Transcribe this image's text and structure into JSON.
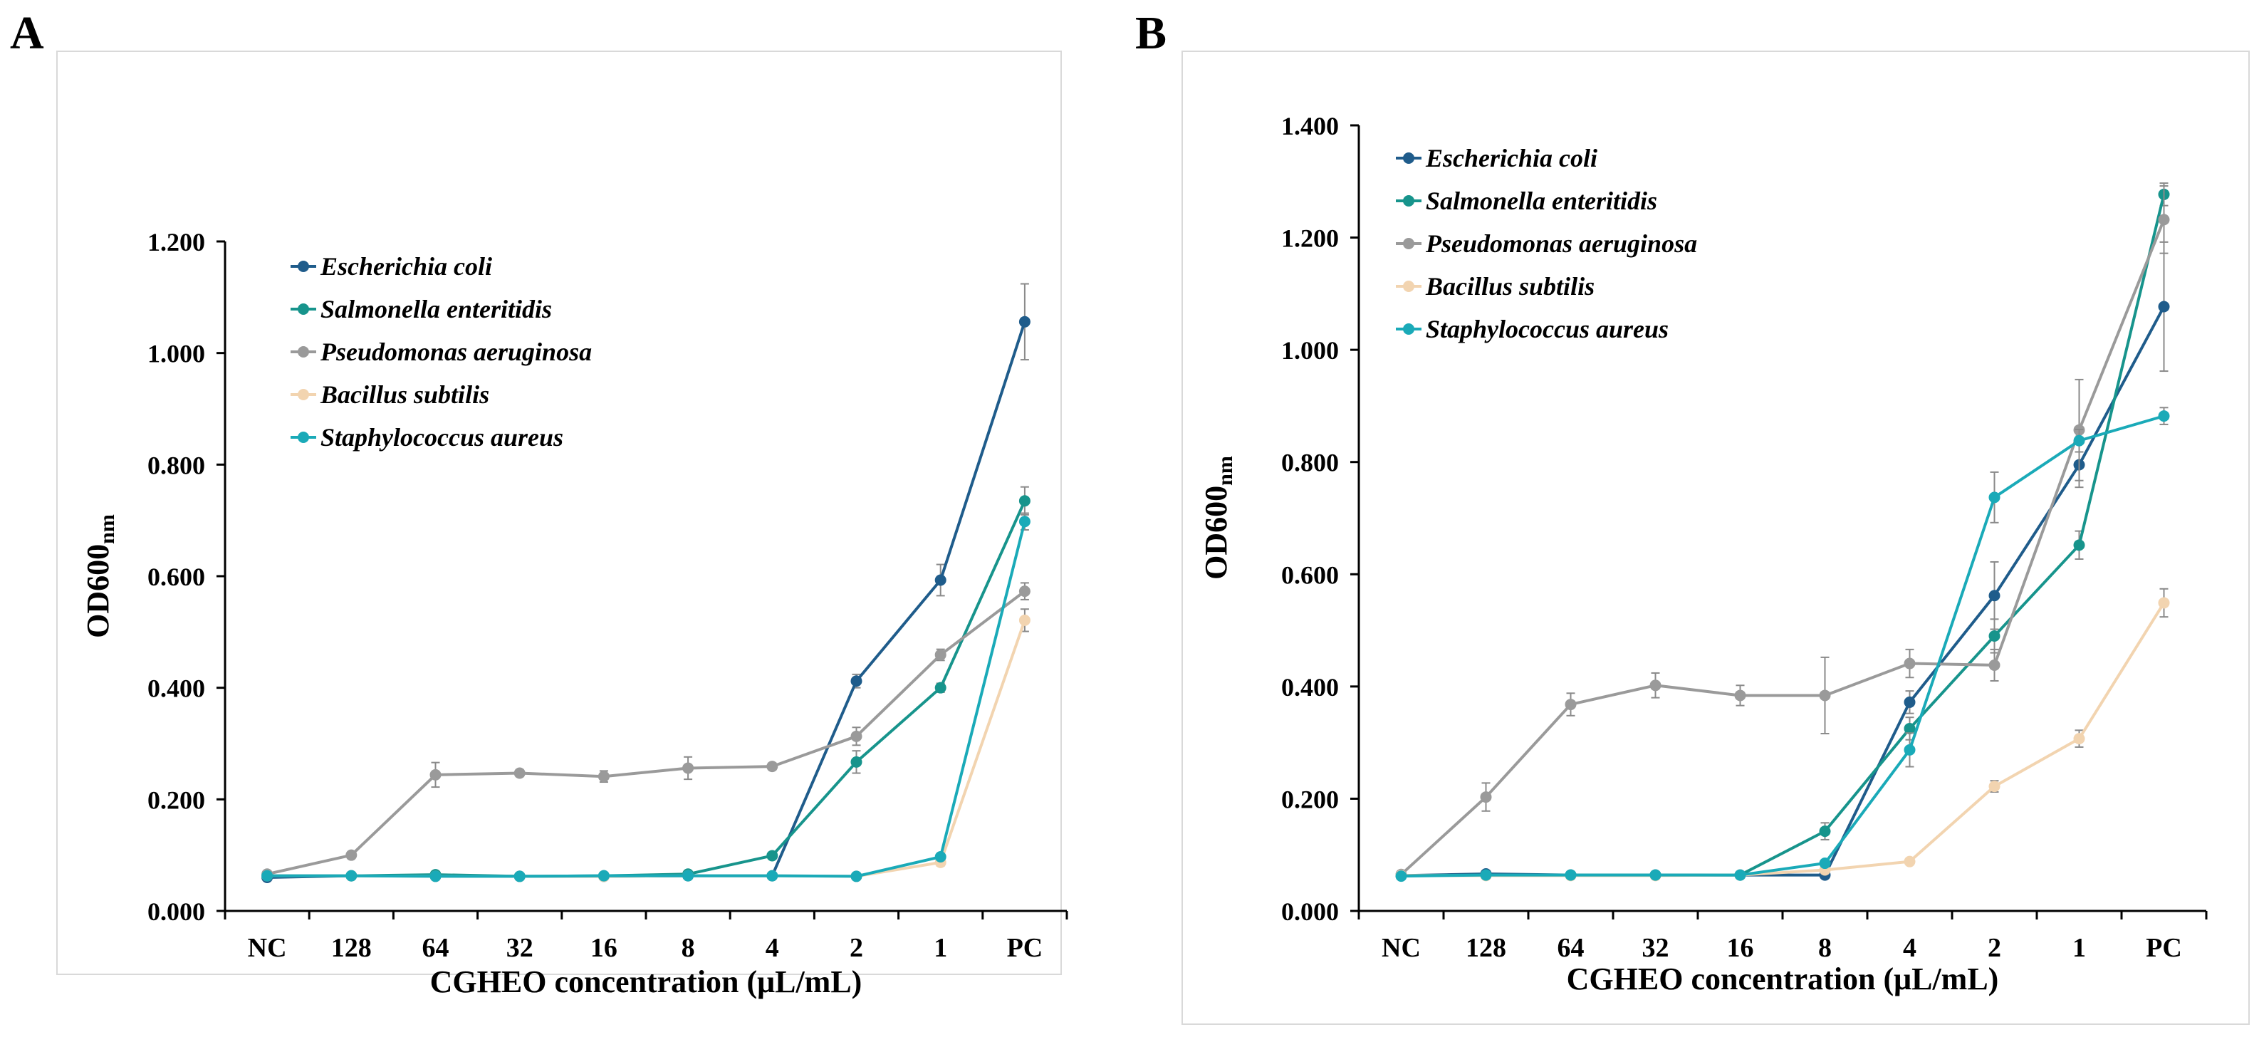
{
  "chart_data": [
    {
      "type": "line",
      "panel": "A",
      "title": "",
      "xlabel": "CGHEO concentration  (μL/mL)",
      "ylabel": "OD600",
      "ylabel_sub": "nm",
      "categories": [
        "NC",
        "128",
        "64",
        "32",
        "16",
        "8",
        "4",
        "2",
        "1",
        "PC"
      ],
      "ylim": [
        0,
        1.2
      ],
      "yticks": [
        "0.000",
        "0.200",
        "0.400",
        "0.600",
        "0.800",
        "1.000",
        "1.200"
      ],
      "grid": false,
      "legend_position": "top-left",
      "series": [
        {
          "name": "Escherichia coli",
          "color": "#1F5C8B",
          "values": [
            0.06,
            0.063,
            0.063,
            0.062,
            0.062,
            0.063,
            0.063,
            0.412,
            0.593,
            1.056
          ],
          "errors": [
            0.004,
            0.003,
            0.003,
            0.003,
            0.003,
            0.003,
            0.003,
            0.012,
            0.028,
            0.068
          ]
        },
        {
          "name": "Salmonella enteritidis",
          "color": "#17948C",
          "values": [
            0.063,
            0.063,
            0.065,
            0.062,
            0.063,
            0.066,
            0.099,
            0.267,
            0.4,
            0.735
          ],
          "errors": [
            0.003,
            0.003,
            0.003,
            0.003,
            0.003,
            0.003,
            0.004,
            0.02,
            0.008,
            0.025
          ]
        },
        {
          "name": "Pseudomonas aeruginosa",
          "color": "#9A9A9A",
          "values": [
            0.066,
            0.1,
            0.244,
            0.247,
            0.241,
            0.256,
            0.259,
            0.313,
            0.459,
            0.573
          ],
          "errors": [
            0.003,
            0.004,
            0.022,
            0.006,
            0.01,
            0.02,
            0.006,
            0.016,
            0.01,
            0.015
          ]
        },
        {
          "name": "Bacillus subtilis",
          "color": "#F2D4B0",
          "values": [
            0.063,
            0.063,
            0.062,
            0.062,
            0.062,
            0.063,
            0.063,
            0.062,
            0.087,
            0.521
          ],
          "errors": [
            0.003,
            0.003,
            0.003,
            0.003,
            0.003,
            0.003,
            0.003,
            0.003,
            0.006,
            0.02
          ]
        },
        {
          "name": "Staphylococcus aureus",
          "color": "#1AAAB8",
          "values": [
            0.063,
            0.063,
            0.062,
            0.062,
            0.063,
            0.063,
            0.063,
            0.062,
            0.097,
            0.698
          ],
          "errors": [
            0.003,
            0.003,
            0.003,
            0.003,
            0.003,
            0.003,
            0.003,
            0.003,
            0.004,
            0.015
          ]
        }
      ]
    },
    {
      "type": "line",
      "panel": "B",
      "title": "",
      "xlabel": "CGHEO concentration (μL/mL)",
      "ylabel": "OD600",
      "ylabel_sub": "nm",
      "categories": [
        "NC",
        "128",
        "64",
        "32",
        "16",
        "8",
        "4",
        "2",
        "1",
        "PC"
      ],
      "ylim": [
        0,
        1.4
      ],
      "yticks": [
        "0.000",
        "0.200",
        "0.400",
        "0.600",
        "0.800",
        "1.000",
        "1.200",
        "1.400"
      ],
      "grid": false,
      "legend_position": "top-left",
      "series": [
        {
          "name": "Escherichia coli",
          "color": "#1F5C8B",
          "values": [
            0.063,
            0.066,
            0.064,
            0.064,
            0.064,
            0.064,
            0.372,
            0.562,
            0.795,
            1.077
          ],
          "errors": [
            0.003,
            0.003,
            0.003,
            0.003,
            0.003,
            0.003,
            0.02,
            0.06,
            0.04,
            0.115
          ]
        },
        {
          "name": "Salmonella enteritidis",
          "color": "#17948C",
          "values": [
            0.063,
            0.064,
            0.064,
            0.064,
            0.064,
            0.142,
            0.325,
            0.49,
            0.652,
            1.277
          ],
          "errors": [
            0.003,
            0.003,
            0.003,
            0.003,
            0.003,
            0.015,
            0.02,
            0.03,
            0.025,
            0.02
          ]
        },
        {
          "name": "Pseudomonas aeruginosa",
          "color": "#9A9A9A",
          "values": [
            0.065,
            0.203,
            0.368,
            0.402,
            0.384,
            0.384,
            0.441,
            0.438,
            0.857,
            1.232
          ],
          "errors": [
            0.003,
            0.025,
            0.02,
            0.022,
            0.018,
            0.068,
            0.025,
            0.028,
            0.09,
            0.06
          ]
        },
        {
          "name": "Bacillus subtilis",
          "color": "#F2D4B0",
          "values": [
            0.063,
            0.063,
            0.063,
            0.063,
            0.064,
            0.073,
            0.088,
            0.222,
            0.307,
            0.549
          ],
          "errors": [
            0.003,
            0.003,
            0.003,
            0.003,
            0.003,
            0.004,
            0.005,
            0.01,
            0.015,
            0.025
          ]
        },
        {
          "name": "Staphylococcus aureus",
          "color": "#1AAAB8",
          "values": [
            0.062,
            0.064,
            0.064,
            0.064,
            0.064,
            0.085,
            0.287,
            0.737,
            0.838,
            0.882
          ],
          "errors": [
            0.003,
            0.003,
            0.003,
            0.003,
            0.003,
            0.005,
            0.03,
            0.045,
            0.02,
            0.015
          ]
        }
      ]
    }
  ]
}
